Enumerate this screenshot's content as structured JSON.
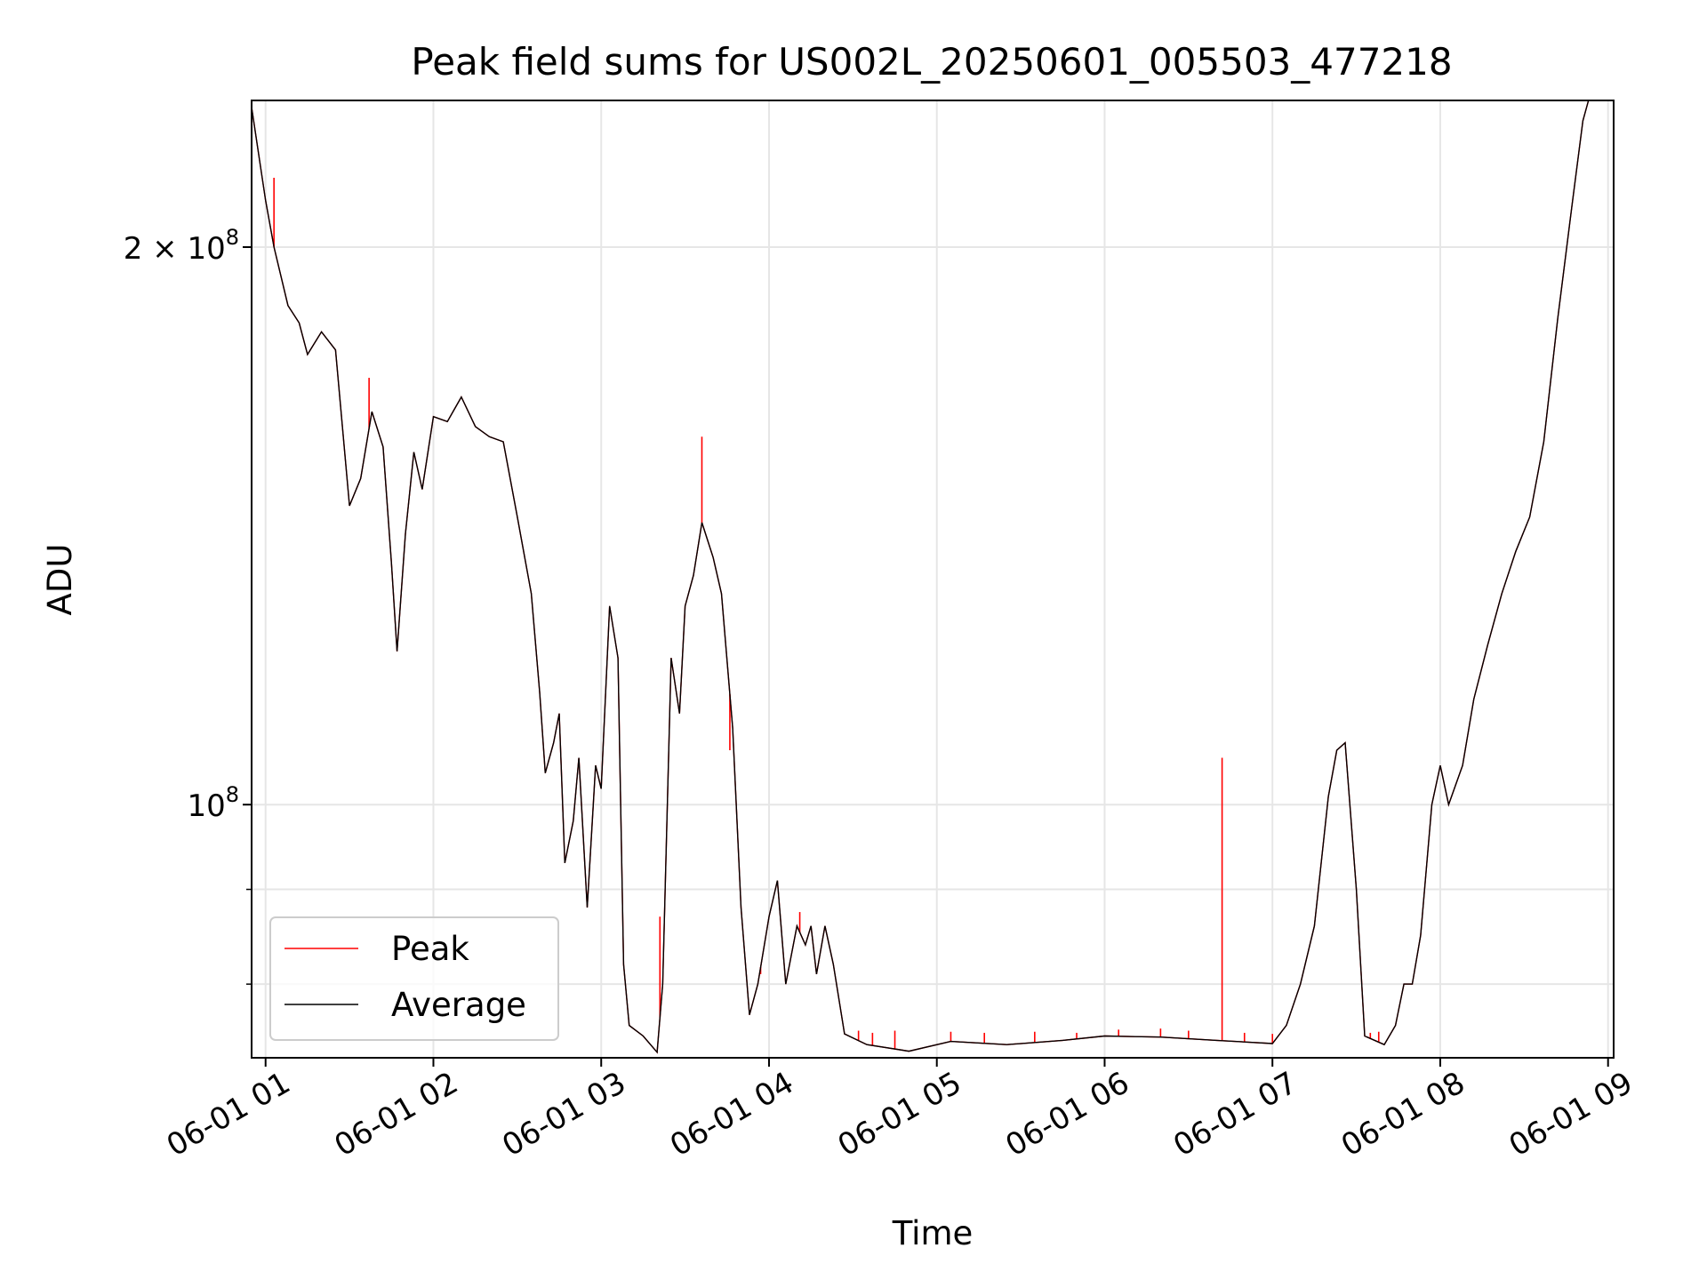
{
  "chart_data": {
    "type": "line",
    "title": "Peak field sums for US002L_20250601_005503_477218",
    "xlabel": "Time",
    "ylabel": "ADU",
    "xlim": [
      "2025-06-01 00:55",
      "2025-06-01 09:02"
    ],
    "ylim": [
      73000000,
      240000000
    ],
    "yscale": "log",
    "grid": true,
    "legend_position": "lower-left",
    "x_ticks": [
      "2025-06-01 01:00",
      "2025-06-01 02:00",
      "2025-06-01 03:00",
      "2025-06-01 04:00",
      "2025-06-01 05:00",
      "2025-06-01 06:00",
      "2025-06-01 07:00",
      "2025-06-01 08:00",
      "2025-06-01 09:00"
    ],
    "x_tick_labels": [
      "06-01 01",
      "06-01 02",
      "06-01 03",
      "06-01 04",
      "06-01 05",
      "06-01 06",
      "06-01 07",
      "06-01 08",
      "06-01 09"
    ],
    "y_ticks": [
      100000000,
      200000000
    ],
    "y_tick_label_parts": [
      [
        "10",
        "8"
      ],
      [
        "2 × 10",
        "8"
      ]
    ],
    "y_minor_ticks": [
      80000000,
      90000000
    ],
    "series": [
      {
        "name": "Average",
        "color": "#000000",
        "points": [
          [
            "2025-06-01 00:55",
            238000000
          ],
          [
            "2025-06-01 01:00",
            212000000
          ],
          [
            "2025-06-01 01:03",
            200000000
          ],
          [
            "2025-06-01 01:08",
            186000000
          ],
          [
            "2025-06-01 01:12",
            182000000
          ],
          [
            "2025-06-01 01:15",
            175000000
          ],
          [
            "2025-06-01 01:20",
            180000000
          ],
          [
            "2025-06-01 01:25",
            176000000
          ],
          [
            "2025-06-01 01:30",
            145000000
          ],
          [
            "2025-06-01 01:34",
            150000000
          ],
          [
            "2025-06-01 01:38",
            163000000
          ],
          [
            "2025-06-01 01:42",
            156000000
          ],
          [
            "2025-06-01 01:45",
            135000000
          ],
          [
            "2025-06-01 01:47",
            121000000
          ],
          [
            "2025-06-01 01:50",
            140000000
          ],
          [
            "2025-06-01 01:53",
            155000000
          ],
          [
            "2025-06-01 01:56",
            148000000
          ],
          [
            "2025-06-01 02:00",
            162000000
          ],
          [
            "2025-06-01 02:05",
            161000000
          ],
          [
            "2025-06-01 02:10",
            166000000
          ],
          [
            "2025-06-01 02:15",
            160000000
          ],
          [
            "2025-06-01 02:20",
            158000000
          ],
          [
            "2025-06-01 02:25",
            157000000
          ],
          [
            "2025-06-01 02:30",
            143000000
          ],
          [
            "2025-06-01 02:35",
            130000000
          ],
          [
            "2025-06-01 02:38",
            115000000
          ],
          [
            "2025-06-01 02:40",
            104000000
          ],
          [
            "2025-06-01 02:43",
            108000000
          ],
          [
            "2025-06-01 02:45",
            112000000
          ],
          [
            "2025-06-01 02:47",
            93000000
          ],
          [
            "2025-06-01 02:50",
            98000000
          ],
          [
            "2025-06-01 02:52",
            106000000
          ],
          [
            "2025-06-01 02:55",
            88000000
          ],
          [
            "2025-06-01 02:58",
            105000000
          ],
          [
            "2025-06-01 03:00",
            102000000
          ],
          [
            "2025-06-01 03:03",
            128000000
          ],
          [
            "2025-06-01 03:06",
            120000000
          ],
          [
            "2025-06-01 03:08",
            82000000
          ],
          [
            "2025-06-01 03:10",
            76000000
          ],
          [
            "2025-06-01 03:15",
            75000000
          ],
          [
            "2025-06-01 03:20",
            73500000
          ],
          [
            "2025-06-01 03:22",
            80000000
          ],
          [
            "2025-06-01 03:25",
            120000000
          ],
          [
            "2025-06-01 03:28",
            112000000
          ],
          [
            "2025-06-01 03:30",
            128000000
          ],
          [
            "2025-06-01 03:33",
            133000000
          ],
          [
            "2025-06-01 03:36",
            142000000
          ],
          [
            "2025-06-01 03:40",
            136000000
          ],
          [
            "2025-06-01 03:43",
            130000000
          ],
          [
            "2025-06-01 03:47",
            110000000
          ],
          [
            "2025-06-01 03:50",
            88000000
          ],
          [
            "2025-06-01 03:53",
            77000000
          ],
          [
            "2025-06-01 03:56",
            80000000
          ],
          [
            "2025-06-01 04:00",
            87000000
          ],
          [
            "2025-06-01 04:03",
            91000000
          ],
          [
            "2025-06-01 04:06",
            80000000
          ],
          [
            "2025-06-01 04:10",
            86000000
          ],
          [
            "2025-06-01 04:13",
            84000000
          ],
          [
            "2025-06-01 04:15",
            86000000
          ],
          [
            "2025-06-01 04:17",
            81000000
          ],
          [
            "2025-06-01 04:20",
            86000000
          ],
          [
            "2025-06-01 04:23",
            82000000
          ],
          [
            "2025-06-01 04:27",
            75200000
          ],
          [
            "2025-06-01 04:35",
            74200000
          ],
          [
            "2025-06-01 04:50",
            73600000
          ],
          [
            "2025-06-01 05:05",
            74500000
          ],
          [
            "2025-06-01 05:25",
            74200000
          ],
          [
            "2025-06-01 05:45",
            74600000
          ],
          [
            "2025-06-01 06:00",
            75000000
          ],
          [
            "2025-06-01 06:20",
            74900000
          ],
          [
            "2025-06-01 06:40",
            74600000
          ],
          [
            "2025-06-01 07:00",
            74300000
          ],
          [
            "2025-06-01 07:05",
            76000000
          ],
          [
            "2025-06-01 07:10",
            80000000
          ],
          [
            "2025-06-01 07:15",
            86000000
          ],
          [
            "2025-06-01 07:20",
            101000000
          ],
          [
            "2025-06-01 07:23",
            107000000
          ],
          [
            "2025-06-01 07:26",
            108000000
          ],
          [
            "2025-06-01 07:30",
            90000000
          ],
          [
            "2025-06-01 07:33",
            75000000
          ],
          [
            "2025-06-01 07:40",
            74200000
          ],
          [
            "2025-06-01 07:44",
            76000000
          ],
          [
            "2025-06-01 07:47",
            80000000
          ],
          [
            "2025-06-01 07:50",
            80000000
          ],
          [
            "2025-06-01 07:53",
            85000000
          ],
          [
            "2025-06-01 07:57",
            100000000
          ],
          [
            "2025-06-01 08:00",
            105000000
          ],
          [
            "2025-06-01 08:03",
            100000000
          ],
          [
            "2025-06-01 08:08",
            105000000
          ],
          [
            "2025-06-01 08:12",
            114000000
          ],
          [
            "2025-06-01 08:17",
            122000000
          ],
          [
            "2025-06-01 08:22",
            130000000
          ],
          [
            "2025-06-01 08:27",
            137000000
          ],
          [
            "2025-06-01 08:32",
            143000000
          ],
          [
            "2025-06-01 08:37",
            157000000
          ],
          [
            "2025-06-01 08:42",
            183000000
          ],
          [
            "2025-06-01 08:47",
            210000000
          ],
          [
            "2025-06-01 08:51",
            234000000
          ],
          [
            "2025-06-01 08:53",
            240000000
          ]
        ]
      },
      {
        "name": "Peak",
        "color": "#ff0000",
        "spikes": [
          [
            "2025-06-01 01:03",
            218000000
          ],
          [
            "2025-06-01 01:37",
            170000000
          ],
          [
            "2025-06-01 03:21",
            87000000
          ],
          [
            "2025-06-01 03:36",
            158000000
          ],
          [
            "2025-06-01 03:46",
            107000000
          ],
          [
            "2025-06-01 03:57",
            81000000
          ],
          [
            "2025-06-01 04:11",
            87500000
          ],
          [
            "2025-06-01 04:32",
            75500000
          ],
          [
            "2025-06-01 04:37",
            75300000
          ],
          [
            "2025-06-01 04:45",
            75500000
          ],
          [
            "2025-06-01 05:05",
            75400000
          ],
          [
            "2025-06-01 05:17",
            75300000
          ],
          [
            "2025-06-01 05:35",
            75400000
          ],
          [
            "2025-06-01 05:50",
            75300000
          ],
          [
            "2025-06-01 06:05",
            75600000
          ],
          [
            "2025-06-01 06:20",
            75700000
          ],
          [
            "2025-06-01 06:30",
            75500000
          ],
          [
            "2025-06-01 06:42",
            106000000
          ],
          [
            "2025-06-01 06:50",
            75300000
          ],
          [
            "2025-06-01 07:00",
            75200000
          ],
          [
            "2025-06-01 07:35",
            75300000
          ],
          [
            "2025-06-01 07:38",
            75400000
          ]
        ]
      }
    ]
  }
}
